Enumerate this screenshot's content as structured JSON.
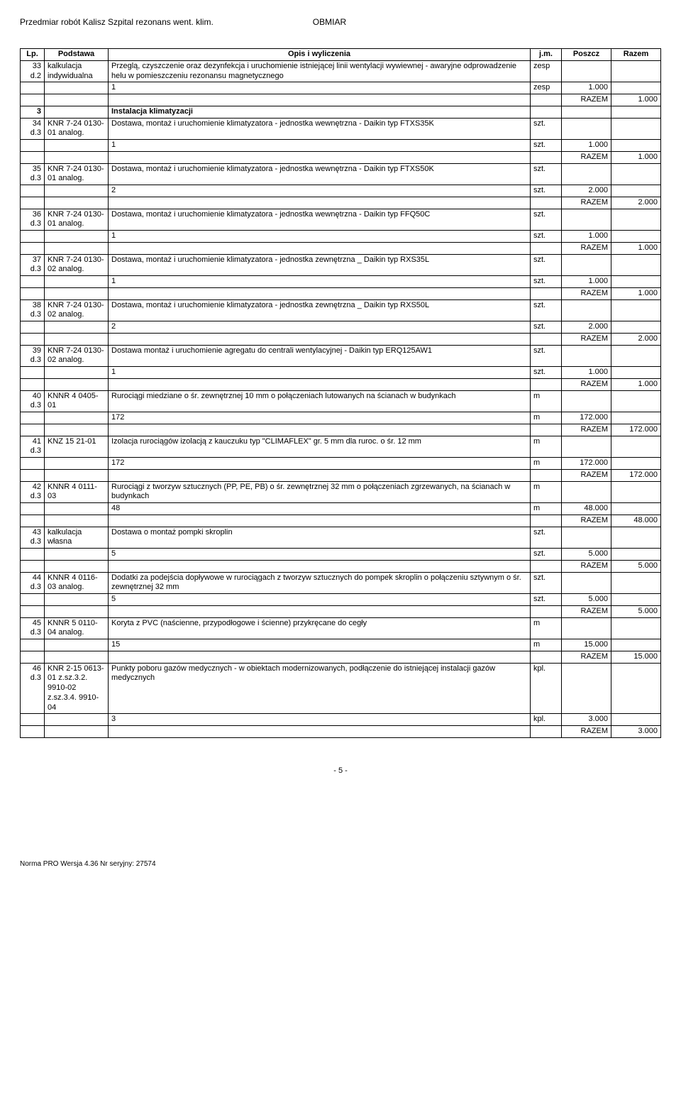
{
  "header": {
    "left": "Przedmiar robót Kalisz Szpital rezonans went. klim.",
    "right": "OBMIAR"
  },
  "columns": {
    "lp": "Lp.",
    "podstawa": "Podstawa",
    "opis": "Opis i wyliczenia",
    "jm": "j.m.",
    "poszcz": "Poszcz",
    "razem": "Razem"
  },
  "labels": {
    "razem": "RAZEM"
  },
  "rows": [
    {
      "lp": "33 d.2",
      "pod": "kalkulacja indywidualna",
      "opis": "Przeglą, czyszczenie oraz dezynfekcja i uruchomienie istniejącej linii wentylacji wywiewnej - awaryjne odprowadzenie helu w pomieszczeniu rezonansu magnetycznego",
      "jm": "zesp",
      "sub": {
        "opis": "1",
        "jm": "zesp",
        "poszcz": "1.000"
      },
      "razem": "1.000"
    },
    {
      "section": true,
      "lp": "3",
      "opis": "Instalacja klimatyzacji"
    },
    {
      "lp": "34 d.3",
      "pod": "KNR 7-24 0130-01 analog.",
      "opis": "Dostawa, montaż i uruchomienie klimatyzatora - jednostka wewnętrzna - Daikin typ FTXS35K",
      "jm": "szt.",
      "sub": {
        "opis": "1",
        "jm": "szt.",
        "poszcz": "1.000"
      },
      "razem": "1.000"
    },
    {
      "lp": "35 d.3",
      "pod": "KNR 7-24 0130-01 analog.",
      "opis": "Dostawa, montaż i uruchomienie  klimatyzatora - jednostka wewnętrzna - Daikin typ FTXS50K",
      "jm": "szt.",
      "sub": {
        "opis": "2",
        "jm": "szt.",
        "poszcz": "2.000"
      },
      "razem": "2.000"
    },
    {
      "lp": "36 d.3",
      "pod": "KNR 7-24 0130-01 analog.",
      "opis": "Dostawa, montaż i uruchomienie  klimatyzatora - jednostka wewnętrzna - Daikin typ FFQ50C",
      "jm": "szt.",
      "sub": {
        "opis": "1",
        "jm": "szt.",
        "poszcz": "1.000"
      },
      "razem": "1.000"
    },
    {
      "lp": "37 d.3",
      "pod": "KNR 7-24 0130-02 analog.",
      "opis": "Dostawa, montaż i uruchomienie  klimatyzatora - jednostka zewnętrzna _ Daikin typ RXS35L",
      "jm": "szt.",
      "sub": {
        "opis": "1",
        "jm": "szt.",
        "poszcz": "1.000"
      },
      "razem": "1.000"
    },
    {
      "lp": "38 d.3",
      "pod": "KNR 7-24 0130-02 analog.",
      "opis": "Dostawa, montaż i uruchomienie  klimatyzatora - jednostka zewnętrzna _ Daikin typ RXS50L",
      "jm": "szt.",
      "sub": {
        "opis": "2",
        "jm": "szt.",
        "poszcz": "2.000"
      },
      "razem": "2.000"
    },
    {
      "lp": "39 d.3",
      "pod": "KNR 7-24 0130-02 analog.",
      "opis": "Dostawa  montaż i uruchomienie agregatu do centrali wentylacyjnej -  Daikin typ ERQ125AW1",
      "jm": "szt.",
      "sub": {
        "opis": "1",
        "jm": "szt.",
        "poszcz": "1.000"
      },
      "razem": "1.000"
    },
    {
      "lp": "40 d.3",
      "pod": "KNNR 4 0405-01",
      "opis": "Rurociągi  miedziane o śr. zewnętrznej 10 mm o połączeniach lutowanych na ścianach w budynkach",
      "jm": "m",
      "sub": {
        "opis": "172",
        "jm": "m",
        "poszcz": "172.000"
      },
      "razem": "172.000"
    },
    {
      "lp": "41 d.3",
      "pod": "KNZ 15 21-01",
      "opis": "Izolacja rurociągów izolacją z kauczuku typ \"CLIMAFLEX\" gr. 5 mm dla ruroc. o śr. 12 mm",
      "jm": "m",
      "sub": {
        "opis": "172",
        "jm": "m",
        "poszcz": "172.000"
      },
      "razem": "172.000"
    },
    {
      "lp": "42 d.3",
      "pod": "KNNR 4 0111-03",
      "opis": "Rurociągi z tworzyw sztucznych (PP, PE, PB) o śr. zewnętrznej 32 mm o połączeniach zgrzewanych, na ścianach w budynkach",
      "jm": "m",
      "sub": {
        "opis": "48",
        "jm": "m",
        "poszcz": "48.000"
      },
      "razem": "48.000"
    },
    {
      "lp": "43 d.3",
      "pod": "kalkulacja własna",
      "opis": "Dostawa o montaż  pompki skroplin",
      "jm": "szt.",
      "sub": {
        "opis": "5",
        "jm": "szt.",
        "poszcz": "5.000"
      },
      "razem": "5.000"
    },
    {
      "lp": "44 d.3",
      "pod": "KNNR 4 0116-03 analog.",
      "opis": "Dodatki za podejścia dopływowe w rurociągach z tworzyw sztucznych do pompek skroplin o połączeniu sztywnym o śr. zewnętrznej 32 mm",
      "jm": "szt.",
      "sub": {
        "opis": "5",
        "jm": "szt.",
        "poszcz": "5.000"
      },
      "razem": "5.000"
    },
    {
      "lp": "45 d.3",
      "pod": "KNNR 5 0110-04 analog.",
      "opis": "Koryta z  PVC  (naścienne, przypodłogowe i ścienne) przykręcane do cegły",
      "jm": "m",
      "sub": {
        "opis": "15",
        "jm": "m",
        "poszcz": "15.000"
      },
      "razem": "15.000"
    },
    {
      "lp": "46 d.3",
      "pod": "KNR 2-15 0613-01 z.sz.3.2. 9910-02 z.sz.3.4. 9910-04",
      "opis": "Punkty poboru gazów medycznych - w obiektach modernizowanych, podłączenie do istniejącej instalacji gazów medycznych",
      "jm": "kpl.",
      "sub": {
        "opis": "3",
        "jm": "kpl.",
        "poszcz": "3.000"
      },
      "razem": "3.000"
    }
  ],
  "footer": {
    "page": "- 5 -",
    "bottom": "Norma PRO Wersja 4.36 Nr seryjny: 27574"
  }
}
